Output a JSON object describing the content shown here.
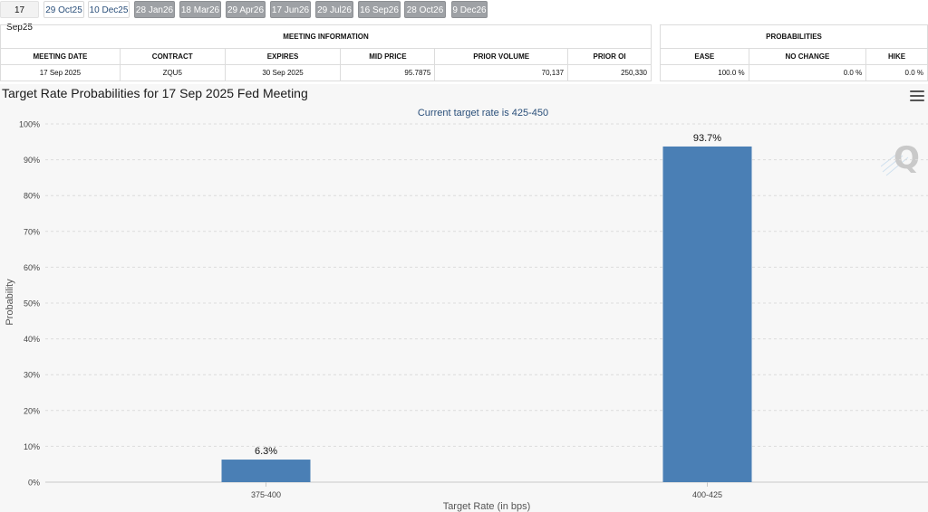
{
  "tabs": [
    {
      "label": "17 Sep25",
      "state": "selected"
    },
    {
      "label": "29 Oct25",
      "state": "open"
    },
    {
      "label": "10 Dec25",
      "state": "open"
    },
    {
      "label": "28 Jan26",
      "state": "future"
    },
    {
      "label": "18 Mar26",
      "state": "future"
    },
    {
      "label": "29 Apr26",
      "state": "future"
    },
    {
      "label": "17 Jun26",
      "state": "future"
    },
    {
      "label": "29 Jul26",
      "state": "future"
    },
    {
      "label": "16 Sep26",
      "state": "future"
    },
    {
      "label": "28 Oct26",
      "state": "future"
    },
    {
      "label": "9 Dec26",
      "state": "future"
    }
  ],
  "meeting_info": {
    "header": "MEETING INFORMATION",
    "columns": [
      "MEETING DATE",
      "CONTRACT",
      "EXPIRES",
      "MID PRICE",
      "PRIOR VOLUME",
      "PRIOR OI"
    ],
    "row": [
      "17 Sep 2025",
      "ZQU5",
      "30 Sep 2025",
      "95.7875",
      "70,137",
      "250,330"
    ]
  },
  "probabilities": {
    "header": "PROBABILITIES",
    "columns": [
      "EASE",
      "NO CHANGE",
      "HIKE"
    ],
    "row": [
      "100.0 %",
      "0.0 %",
      "0.0 %"
    ]
  },
  "chart_title": "Target Rate Probabilities for 17 Sep 2025 Fed Meeting",
  "colors": {
    "bar": "#4a7fb5",
    "grid": "#dcdcdc",
    "subtitle": "#2a4f7a"
  },
  "chart_data": {
    "type": "bar",
    "title": "Target Rate Probabilities for 17 Sep 2025 Fed Meeting",
    "subtitle": "Current target rate is 425-450",
    "xlabel": "Target Rate (in bps)",
    "ylabel": "Probability",
    "categories": [
      "375-400",
      "400-425"
    ],
    "values": [
      6.3,
      93.7
    ],
    "data_labels": [
      "6.3%",
      "93.7%"
    ],
    "ylim": [
      0,
      100
    ],
    "yticks": [
      "0%",
      "10%",
      "20%",
      "30%",
      "40%",
      "50%",
      "60%",
      "70%",
      "80%",
      "90%",
      "100%"
    ],
    "grid": true
  }
}
